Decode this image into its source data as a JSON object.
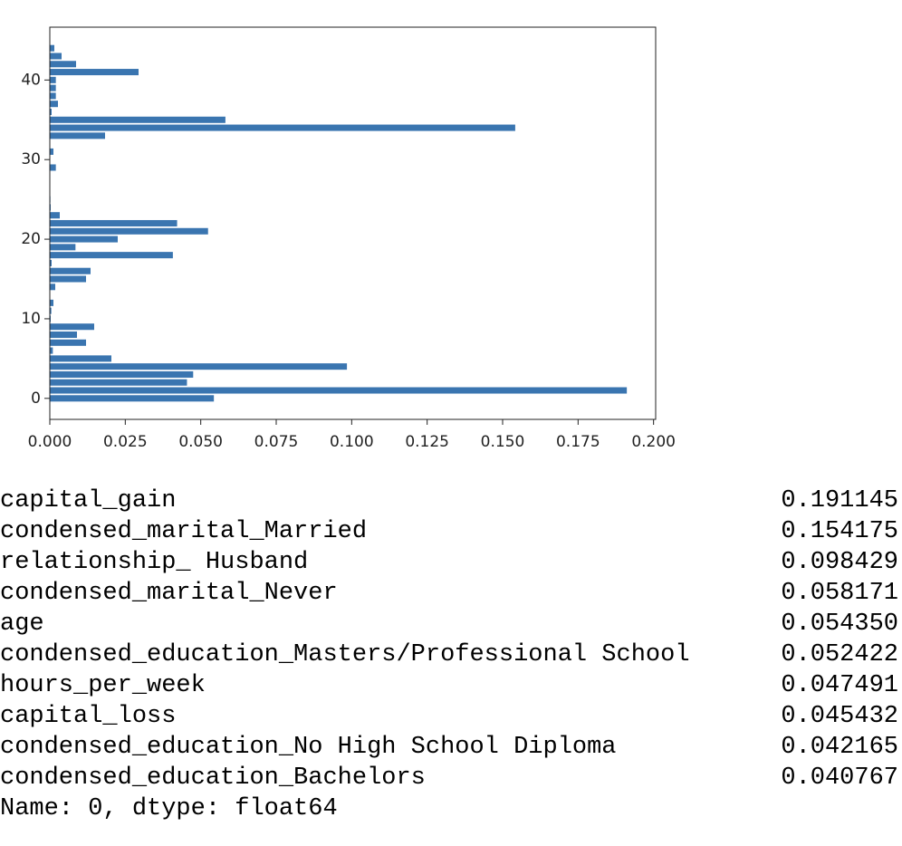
{
  "chart_data": {
    "type": "barh",
    "color": "#3a75b0",
    "y": [
      0,
      1,
      2,
      3,
      4,
      5,
      6,
      7,
      8,
      9,
      10,
      11,
      12,
      13,
      14,
      15,
      16,
      17,
      18,
      19,
      20,
      21,
      22,
      23,
      24,
      25,
      26,
      27,
      28,
      29,
      30,
      31,
      32,
      33,
      34,
      35,
      36,
      37,
      38,
      39,
      40,
      41,
      42,
      43,
      44
    ],
    "values": [
      0.05435,
      0.191145,
      0.045432,
      0.047491,
      0.098429,
      0.0204,
      0.001,
      0.012,
      0.009,
      0.0147,
      0.0003,
      0.0005,
      0.0012,
      0,
      0.0018,
      0.012,
      0.0135,
      0.0006,
      0.040767,
      0.0085,
      0.0225,
      0.052422,
      0.042165,
      0.0033,
      0.0003,
      0.0002,
      0,
      0,
      0,
      0.002,
      0,
      0.0012,
      0,
      0.0183,
      0.154175,
      0.058171,
      0.0006,
      0.0027,
      0.002,
      0.002,
      0.002,
      0.0294,
      0.0087,
      0.0039,
      0.0015
    ],
    "xlim": [
      0,
      0.2007
    ],
    "ylim": [
      -2.64,
      46.64
    ],
    "xticks": [
      {
        "value": 0,
        "label": "0.000"
      },
      {
        "value": 0.025,
        "label": "0.025"
      },
      {
        "value": 0.05,
        "label": "0.050"
      },
      {
        "value": 0.075,
        "label": "0.075"
      },
      {
        "value": 0.1,
        "label": "0.100"
      },
      {
        "value": 0.125,
        "label": "0.125"
      },
      {
        "value": 0.15,
        "label": "0.150"
      },
      {
        "value": 0.175,
        "label": "0.175"
      },
      {
        "value": 0.2,
        "label": "0.200"
      }
    ],
    "yticks": [
      0,
      10,
      20,
      30,
      40
    ]
  },
  "output": {
    "rows": [
      [
        "capital_gain",
        "0.191145"
      ],
      [
        "condensed_marital_Married",
        "0.154175"
      ],
      [
        "relationship_ Husband",
        "0.098429"
      ],
      [
        "condensed_marital_Never",
        "0.058171"
      ],
      [
        "age",
        "0.054350"
      ],
      [
        "condensed_education_Masters/Professional School",
        "0.052422"
      ],
      [
        "hours_per_week",
        "0.047491"
      ],
      [
        "capital_loss",
        "0.045432"
      ],
      [
        "condensed_education_No High School Diploma",
        "0.042165"
      ],
      [
        "condensed_education_Bachelors",
        "0.040767"
      ]
    ],
    "footer": "Name: 0, dtype: float64"
  }
}
